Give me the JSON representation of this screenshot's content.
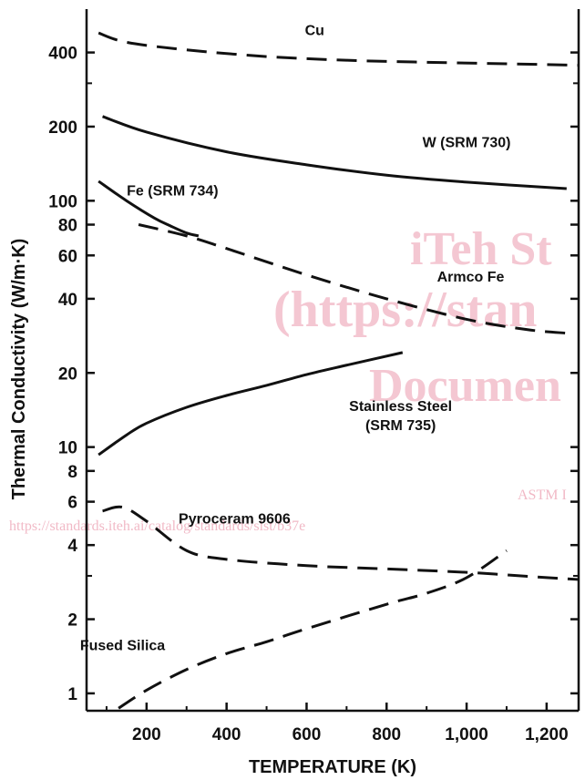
{
  "chart_data": {
    "type": "line",
    "xlabel": "TEMPERATURE (K)",
    "ylabel": "Thermal Conductivity (W/m·K)",
    "y_scale": "log",
    "xlim": [
      50,
      1280
    ],
    "ylim": [
      0.85,
      600
    ],
    "x_ticks": [
      200,
      400,
      600,
      800,
      1000,
      1200
    ],
    "x_tick_labels": [
      "200",
      "400",
      "600",
      "800",
      "1,000",
      "1,200"
    ],
    "y_ticks": [
      1,
      2,
      4,
      6,
      8,
      10,
      20,
      40,
      60,
      80,
      100,
      200,
      400
    ],
    "y_tick_labels": [
      "1",
      "2",
      "4",
      "6",
      "8",
      "10",
      "20",
      "40",
      "60",
      "80",
      "100",
      "200",
      "400"
    ],
    "series": [
      {
        "name": "Cu",
        "style": "dashed",
        "label_lines": [
          "Cu"
        ],
        "label_at": [
          620,
          470
        ],
        "points": [
          [
            80,
            480
          ],
          [
            150,
            440
          ],
          [
            300,
            410
          ],
          [
            500,
            385
          ],
          [
            700,
            372
          ],
          [
            900,
            365
          ],
          [
            1100,
            360
          ],
          [
            1280,
            355
          ]
        ]
      },
      {
        "name": "W (SRM 730)",
        "style": "solid",
        "label_lines": [
          "W (SRM 730)"
        ],
        "label_at": [
          1000,
          165
        ],
        "points": [
          [
            90,
            220
          ],
          [
            200,
            190
          ],
          [
            400,
            158
          ],
          [
            600,
            140
          ],
          [
            800,
            127
          ],
          [
            1000,
            119
          ],
          [
            1250,
            112
          ]
        ]
      },
      {
        "name": "Fe (SRM 734)",
        "style": "solid",
        "label_lines": [
          "Fe (SRM 734)"
        ],
        "label_at": [
          265,
          105
        ],
        "points": [
          [
            80,
            120
          ],
          [
            150,
            100
          ],
          [
            220,
            85
          ],
          [
            260,
            79
          ],
          [
            300,
            74
          ],
          [
            330,
            72
          ]
        ]
      },
      {
        "name": "Armco Fe",
        "style": "dashed",
        "label_lines": [
          "Armco Fe"
        ],
        "label_at": [
          1010,
          47
        ],
        "points": [
          [
            180,
            80
          ],
          [
            300,
            72
          ],
          [
            400,
            64
          ],
          [
            600,
            50
          ],
          [
            800,
            40
          ],
          [
            1000,
            33
          ],
          [
            1150,
            30
          ],
          [
            1250,
            29
          ]
        ]
      },
      {
        "name": "Stainless Steel (SRM 735)",
        "style": "solid",
        "label_lines": [
          "Stainless Steel",
          "(SRM 735)"
        ],
        "label_at": [
          835,
          14
        ],
        "points": [
          [
            80,
            9.3
          ],
          [
            150,
            11.2
          ],
          [
            200,
            12.5
          ],
          [
            300,
            14.5
          ],
          [
            400,
            16.2
          ],
          [
            500,
            17.8
          ],
          [
            600,
            19.7
          ],
          [
            700,
            21.5
          ],
          [
            840,
            24.2
          ]
        ]
      },
      {
        "name": "Pyroceram 9606",
        "style": "dashed",
        "label_lines": [
          "Pyroceram 9606"
        ],
        "label_at": [
          420,
          4.9
        ],
        "points": [
          [
            90,
            5.5
          ],
          [
            140,
            5.7
          ],
          [
            200,
            5.0
          ],
          [
            300,
            3.8
          ],
          [
            400,
            3.5
          ],
          [
            600,
            3.3
          ],
          [
            800,
            3.2
          ],
          [
            1000,
            3.1
          ],
          [
            1200,
            2.95
          ],
          [
            1280,
            2.9
          ]
        ]
      },
      {
        "name": "Fused Silica",
        "style": "dashed",
        "label_lines": [
          "Fused Silica"
        ],
        "label_at": [
          140,
          1.5
        ],
        "points": [
          [
            130,
            0.87
          ],
          [
            200,
            1.03
          ],
          [
            300,
            1.25
          ],
          [
            400,
            1.45
          ],
          [
            500,
            1.62
          ],
          [
            600,
            1.83
          ],
          [
            800,
            2.3
          ],
          [
            900,
            2.55
          ],
          [
            1000,
            2.95
          ],
          [
            1100,
            3.8
          ]
        ]
      }
    ]
  },
  "watermark": {
    "lines": [
      "iTeh St",
      "(https://stan",
      "Documen"
    ],
    "link": "ASTM I",
    "url": "https://standards.iteh.ai/catalog/standards/sist/b37e"
  }
}
